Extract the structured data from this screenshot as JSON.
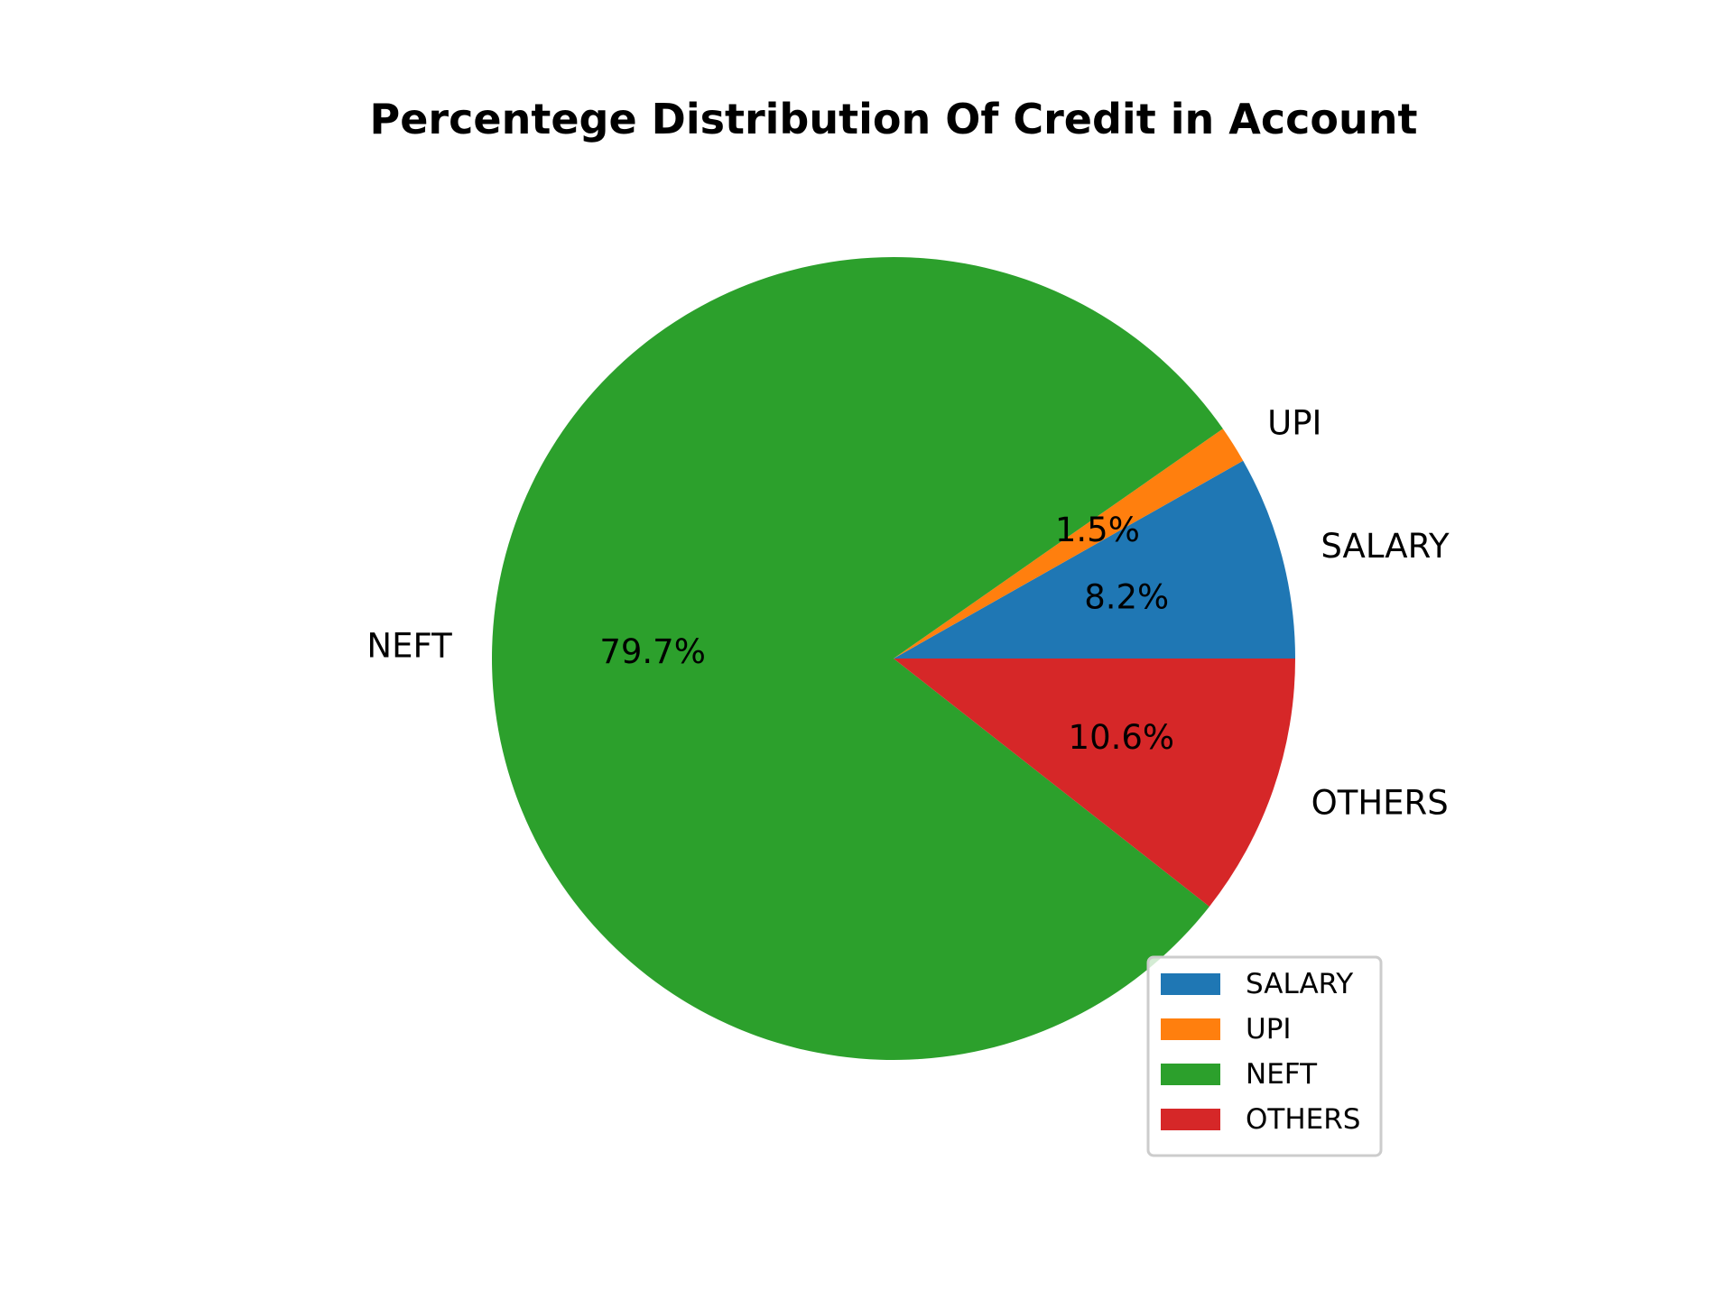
{
  "chart_data": {
    "type": "pie",
    "title": "Percentege Distribution Of Credit in Account",
    "legend_placement": "lower-right",
    "slices": [
      {
        "label": "SALARY",
        "value": 8.2,
        "pct_label": "8.2%",
        "color": "#1f77b4"
      },
      {
        "label": "UPI",
        "value": 1.5,
        "pct_label": "1.5%",
        "color": "#ff7f0e"
      },
      {
        "label": "NEFT",
        "value": 79.7,
        "pct_label": "79.7%",
        "color": "#2ca02c"
      },
      {
        "label": "OTHERS",
        "value": 10.6,
        "pct_label": "10.6%",
        "color": "#d62728"
      }
    ]
  }
}
